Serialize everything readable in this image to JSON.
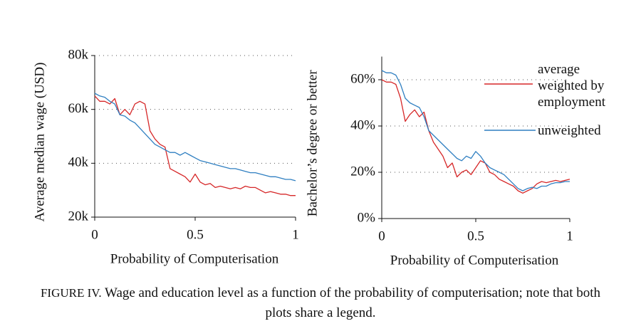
{
  "chart_data": [
    {
      "type": "line",
      "ylabel": "Average median wage (USD)",
      "xlabel": "Probability of Computerisation",
      "xlim": [
        0,
        1
      ],
      "xticks": [
        0,
        0.5,
        1
      ],
      "ylim": [
        20000,
        80000
      ],
      "yticks": [
        {
          "value": 20000,
          "label": "20k"
        },
        {
          "value": 40000,
          "label": "40k"
        },
        {
          "value": 60000,
          "label": "60k"
        },
        {
          "value": 80000,
          "label": "80k"
        }
      ],
      "grid": true,
      "x": [
        0,
        0.025,
        0.05,
        0.075,
        0.1,
        0.125,
        0.15,
        0.175,
        0.2,
        0.225,
        0.25,
        0.275,
        0.3,
        0.325,
        0.35,
        0.375,
        0.4,
        0.425,
        0.45,
        0.475,
        0.5,
        0.525,
        0.55,
        0.575,
        0.6,
        0.625,
        0.65,
        0.675,
        0.7,
        0.725,
        0.75,
        0.775,
        0.8,
        0.825,
        0.85,
        0.875,
        0.9,
        0.925,
        0.95,
        0.975,
        1
      ],
      "series": [
        {
          "name": "average weighted by employment",
          "color": "#d62728",
          "values": [
            65000,
            63000,
            63000,
            62000,
            64000,
            58000,
            60000,
            58000,
            62000,
            63000,
            62000,
            52000,
            49000,
            47000,
            46000,
            38000,
            37000,
            36000,
            35000,
            33000,
            36000,
            33000,
            32000,
            32500,
            31000,
            31500,
            31000,
            30500,
            31000,
            30500,
            31500,
            31000,
            31000,
            30000,
            29000,
            29500,
            29000,
            28500,
            28500,
            28000,
            28000
          ]
        },
        {
          "name": "unweighted",
          "color": "#2f7fc1",
          "values": [
            66000,
            65000,
            64500,
            63000,
            62000,
            58000,
            57500,
            56000,
            55000,
            53000,
            51000,
            49000,
            47000,
            46000,
            45000,
            44000,
            44000,
            43000,
            44000,
            43000,
            42000,
            41000,
            40500,
            40000,
            39500,
            39000,
            38500,
            38000,
            38000,
            37500,
            37000,
            36500,
            36500,
            36000,
            35500,
            35000,
            35000,
            34500,
            34000,
            34000,
            33500
          ]
        }
      ]
    },
    {
      "type": "line",
      "ylabel": "Bachelor’s degree or better",
      "xlabel": "Probability of Computerisation",
      "xlim": [
        0,
        1
      ],
      "xticks": [
        0,
        0.5,
        1
      ],
      "ylim": [
        0,
        70
      ],
      "yticks": [
        {
          "value": 0,
          "label": "0%"
        },
        {
          "value": 20,
          "label": "20%"
        },
        {
          "value": 40,
          "label": "40%"
        },
        {
          "value": 60,
          "label": "60%"
        }
      ],
      "grid": true,
      "x": [
        0,
        0.025,
        0.05,
        0.075,
        0.1,
        0.125,
        0.15,
        0.175,
        0.2,
        0.225,
        0.25,
        0.275,
        0.3,
        0.325,
        0.35,
        0.375,
        0.4,
        0.425,
        0.45,
        0.475,
        0.5,
        0.525,
        0.55,
        0.575,
        0.6,
        0.625,
        0.65,
        0.675,
        0.7,
        0.725,
        0.75,
        0.775,
        0.8,
        0.825,
        0.85,
        0.875,
        0.9,
        0.925,
        0.95,
        0.975,
        1
      ],
      "series": [
        {
          "color": "#d62728",
          "values": [
            60,
            59,
            59,
            58,
            52,
            42,
            45,
            47,
            44,
            46,
            38,
            33,
            30,
            27,
            22,
            24,
            18,
            20,
            21,
            19,
            22,
            25,
            24,
            20,
            19,
            17,
            16,
            15,
            14,
            12,
            11,
            12,
            13,
            15,
            16,
            15.5,
            16,
            16.5,
            16,
            16.5,
            17
          ]
        },
        {
          "color": "#2f7fc1",
          "values": [
            64,
            63,
            63,
            62,
            58,
            52,
            50,
            49,
            48,
            44,
            38,
            36,
            34,
            32,
            30,
            28,
            26,
            25,
            27,
            26,
            29,
            27,
            24,
            22,
            21,
            20,
            19,
            17,
            15,
            13,
            12,
            13,
            13.5,
            13,
            14,
            14,
            15,
            15.5,
            15.5,
            16,
            16
          ]
        }
      ]
    }
  ],
  "caption": {
    "label": "FIGURE IV.",
    "text": "Wage and education level as a function of the probability of computerisation; note that both plots share a legend."
  }
}
